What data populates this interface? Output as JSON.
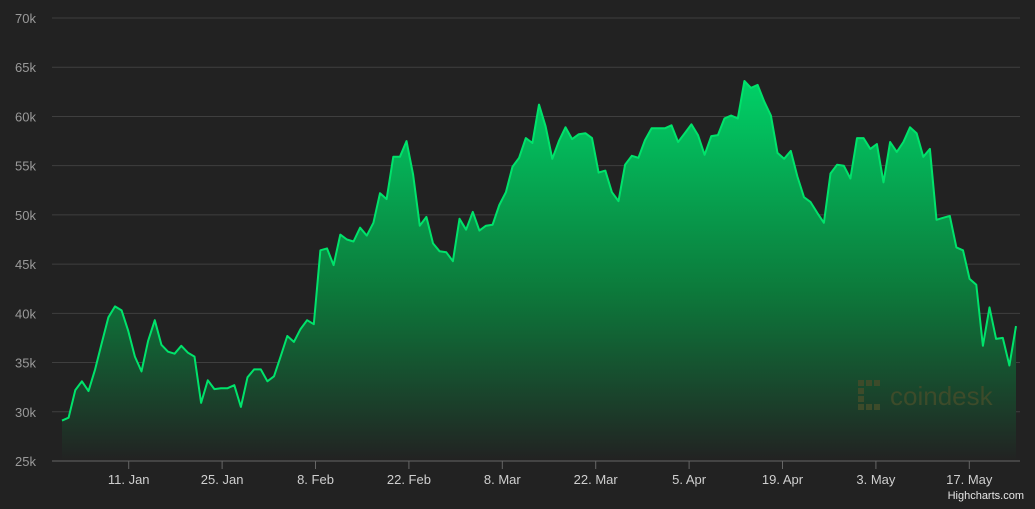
{
  "chart_data": {
    "type": "area",
    "title": "",
    "xlabel": "",
    "ylabel": "",
    "x_start": "2021-01-01",
    "x_end": "2021-05-24",
    "ylim": [
      25000,
      70000
    ],
    "y_ticks": [
      {
        "value": 25000,
        "label": "25k"
      },
      {
        "value": 30000,
        "label": "30k"
      },
      {
        "value": 35000,
        "label": "35k"
      },
      {
        "value": 40000,
        "label": "40k"
      },
      {
        "value": 45000,
        "label": "45k"
      },
      {
        "value": 50000,
        "label": "50k"
      },
      {
        "value": 55000,
        "label": "55k"
      },
      {
        "value": 60000,
        "label": "60k"
      },
      {
        "value": 65000,
        "label": "65k"
      },
      {
        "value": 70000,
        "label": "70k"
      }
    ],
    "x_ticks": [
      {
        "date": "2021-01-11",
        "label": "11. Jan"
      },
      {
        "date": "2021-01-25",
        "label": "25. Jan"
      },
      {
        "date": "2021-02-08",
        "label": "8. Feb"
      },
      {
        "date": "2021-02-22",
        "label": "22. Feb"
      },
      {
        "date": "2021-03-08",
        "label": "8. Mar"
      },
      {
        "date": "2021-03-22",
        "label": "22. Mar"
      },
      {
        "date": "2021-04-05",
        "label": "5. Apr"
      },
      {
        "date": "2021-04-19",
        "label": "19. Apr"
      },
      {
        "date": "2021-05-03",
        "label": "3. May"
      },
      {
        "date": "2021-05-17",
        "label": "17. May"
      }
    ],
    "grid": true,
    "series": [
      {
        "name": "",
        "color": "#00e36b",
        "values": [
          29100,
          29400,
          32200,
          33100,
          32100,
          34300,
          37000,
          39600,
          40700,
          40300,
          38200,
          35600,
          34100,
          37200,
          39300,
          36800,
          36100,
          35900,
          36700,
          36000,
          35600,
          30900,
          33200,
          32300,
          32400,
          32400,
          32700,
          30500,
          33500,
          34300,
          34300,
          33100,
          33600,
          35600,
          37700,
          37100,
          38400,
          39300,
          38900,
          46400,
          46600,
          44900,
          48000,
          47500,
          47300,
          48700,
          47900,
          49200,
          52200,
          51600,
          55900,
          55900,
          57500,
          54100,
          48900,
          49800,
          47100,
          46300,
          46200,
          45300,
          49600,
          48500,
          50300,
          48400,
          48900,
          49000,
          51000,
          52300,
          54900,
          55800,
          57800,
          57300,
          61200,
          59000,
          55700,
          57500,
          58900,
          57700,
          58200,
          58300,
          57800,
          54300,
          54500,
          52300,
          51400,
          55100,
          56000,
          55800,
          57600,
          58800,
          58800,
          58800,
          59100,
          57400,
          58300,
          59200,
          58100,
          56100,
          58000,
          58100,
          59800,
          60100,
          59800,
          63600,
          62900,
          63200,
          61500,
          60100,
          56300,
          55700,
          56500,
          53900,
          51800,
          51300,
          50200,
          49200,
          54200,
          55100,
          55000,
          53700,
          57800,
          57800,
          56700,
          57200,
          53300,
          57400,
          56400,
          57400,
          58900,
          58300,
          55900,
          56700,
          49500,
          49700,
          49900,
          46700,
          46400,
          43500,
          42900,
          36700,
          40600,
          37400,
          37500,
          34700,
          38700
        ]
      }
    ],
    "credit": "Highcharts.com",
    "watermark": "coindesk"
  }
}
